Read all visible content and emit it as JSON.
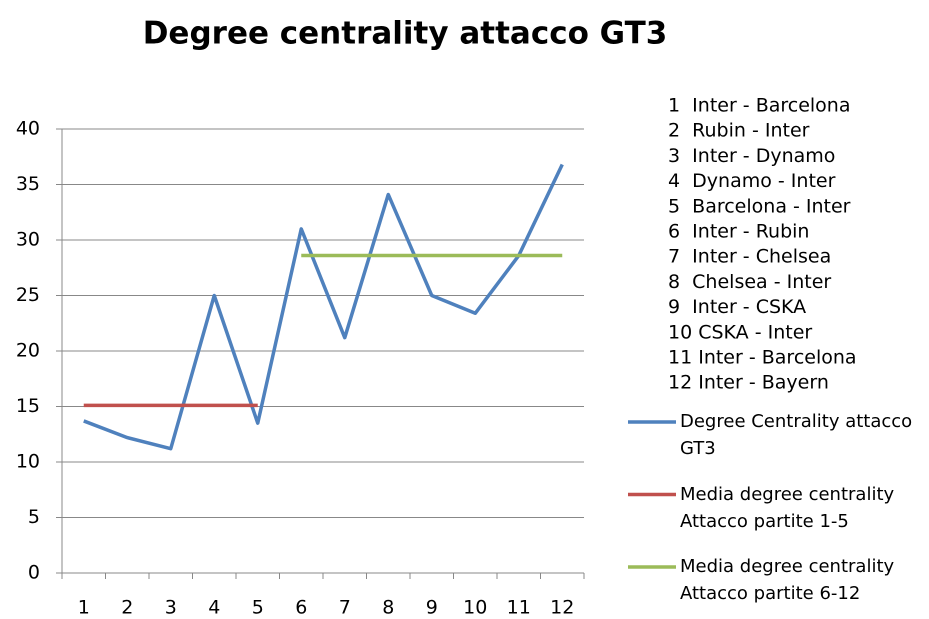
{
  "chart_data": {
    "type": "line",
    "title": "Degree centrality attacco GT3",
    "categories": [
      "1",
      "2",
      "3",
      "4",
      "5",
      "6",
      "7",
      "8",
      "9",
      "10",
      "11",
      "12"
    ],
    "series": [
      {
        "name": "Degree Centrality attacco GT3",
        "color": "#4f81bd",
        "values": [
          13.7,
          12.2,
          11.2,
          25.0,
          13.5,
          31.0,
          21.2,
          34.1,
          25.0,
          23.4,
          28.6,
          36.8
        ]
      },
      {
        "name": "Media degree centrality Attacco partite 1-5",
        "color": "#c0504d",
        "values": [
          15.1,
          15.1,
          15.1,
          15.1,
          15.1,
          null,
          null,
          null,
          null,
          null,
          null,
          null
        ]
      },
      {
        "name": "Media degree centrality Attacco partite 6-12",
        "color": "#9bbb59",
        "values": [
          null,
          null,
          null,
          null,
          null,
          28.6,
          28.6,
          28.6,
          28.6,
          28.6,
          28.6,
          28.6
        ]
      }
    ],
    "ylim": [
      0,
      40
    ],
    "yticks": [
      0,
      5,
      10,
      15,
      20,
      25,
      30,
      35,
      40
    ],
    "grid": true,
    "annotations": [
      "1  Inter - Barcelona",
      "2  Rubin - Inter",
      "3  Inter - Dynamo",
      "4  Dynamo - Inter",
      "5  Barcelona - Inter",
      "6  Inter - Rubin",
      "7  Inter - Chelsea",
      "8  Chelsea - Inter",
      "9  Inter - CSKA",
      "10 CSKA - Inter",
      "11 Inter - Barcelona",
      "12 Inter - Bayern"
    ],
    "legend": "right"
  }
}
